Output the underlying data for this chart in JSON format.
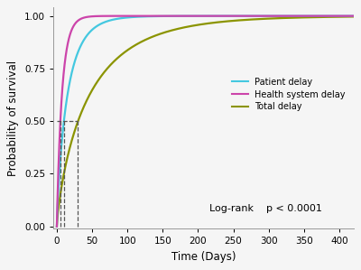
{
  "title": "",
  "xlabel": "Time (Days)",
  "ylabel": "Probability of survival",
  "xlim": [
    -5,
    420
  ],
  "ylim": [
    -0.01,
    1.04
  ],
  "yticks": [
    0.0,
    0.25,
    0.5,
    0.75,
    1.0
  ],
  "xticks": [
    0,
    50,
    100,
    150,
    200,
    250,
    300,
    350,
    400
  ],
  "colors": {
    "patient": "#44C8E0",
    "health": "#CC44AA",
    "total": "#8B9400"
  },
  "legend_labels": [
    "Patient delay",
    "Health system delay",
    "Total delay"
  ],
  "logrank_text": "Log-rank    p < 0.0001",
  "median_patient": 10,
  "median_health": 5,
  "median_total": 30,
  "background_color": "#f5f5f5"
}
